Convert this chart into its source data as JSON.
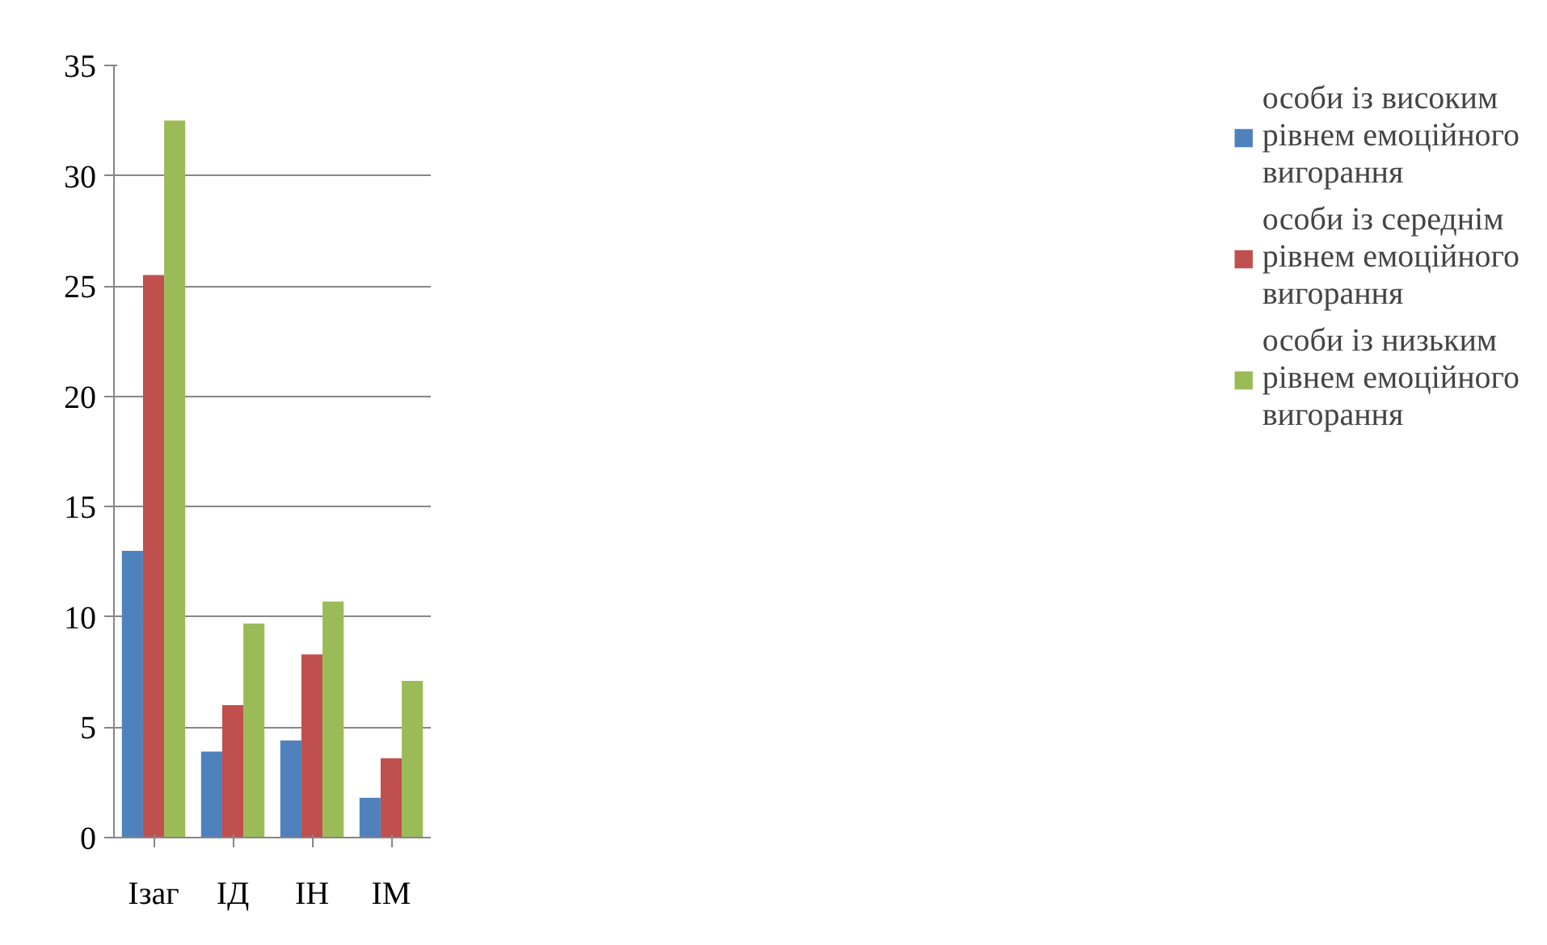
{
  "chart_data": {
    "type": "bar",
    "categories": [
      "Ізаг",
      "ІД",
      "ІН",
      "ІМ"
    ],
    "series": [
      {
        "name": "особи із високим рівнем емоційного вигорання",
        "color": "#4f81bd",
        "values": [
          13.0,
          3.9,
          4.4,
          1.8
        ]
      },
      {
        "name": "особи із середнім рівнем емоційного вигорання",
        "color": "#c0504d",
        "values": [
          25.5,
          6.0,
          8.3,
          3.6
        ]
      },
      {
        "name": "особи із низьким рівнем емоційного вигорання",
        "color": "#9bbb59",
        "values": [
          32.5,
          9.7,
          10.7,
          7.1
        ]
      }
    ],
    "ylim": [
      0,
      35
    ],
    "yticks": [
      0,
      5,
      10,
      15,
      20,
      25,
      30,
      35
    ],
    "grid": "y",
    "legend": "right"
  }
}
